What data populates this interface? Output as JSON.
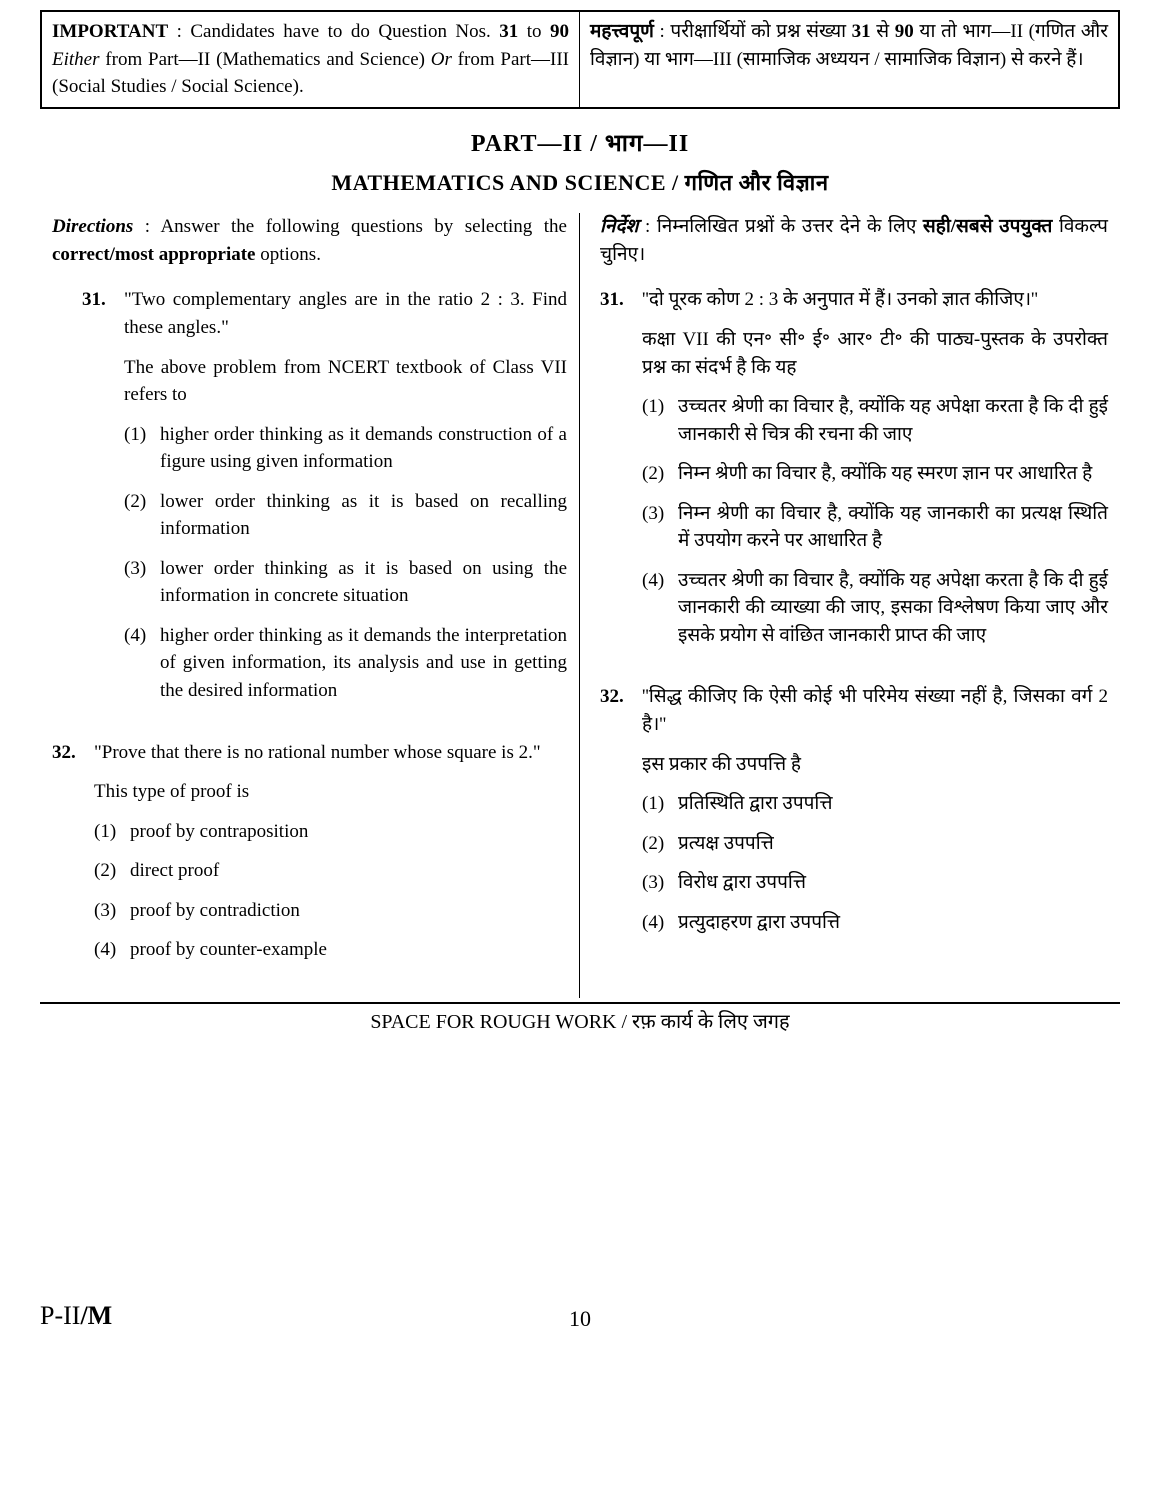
{
  "important": {
    "en_label": "IMPORTANT",
    "en_text": " : Candidates have to do Question Nos. ",
    "en_range": "31",
    "en_to": " to ",
    "en_range2": "90",
    "en_either": " Either",
    "en_partA": " from Part—II (Mathematics and Science) ",
    "en_or": "Or",
    "en_partB": " from Part—III (Social Studies / Social Science).",
    "hi_label": "महत्त्वपूर्ण",
    "hi_text": " : परीक्षार्थियों को प्रश्न संख्या ",
    "hi_r1": "31",
    "hi_mid": " से ",
    "hi_r2": "90",
    "hi_rest": " या तो भाग—II (गणित और विज्ञान) या भाग—III (सामाजिक अध्ययन / सामाजिक विज्ञान) से करने हैं।"
  },
  "part_title": "PART—II / भाग—II",
  "subject_title": "MATHEMATICS AND SCIENCE / गणित और विज्ञान",
  "directions": {
    "en_label": "Directions",
    "en_text1": " : Answer the following questions by selecting the ",
    "en_bold": "correct/most appropriate",
    "en_text2": " options.",
    "hi_label": "निर्देश",
    "hi_text1": " : निम्नलिखित प्रश्नों के उत्तर देने के लिए ",
    "hi_bold": "सही/सबसे उपयुक्त",
    "hi_text2": " विकल्प चुनिए।"
  },
  "q31": {
    "num": "31.",
    "en_stem1": "\"Two complementary angles are in the ratio 2 : 3. Find these angles.\"",
    "en_stem2": "The above problem from NCERT textbook of Class VII refers to",
    "en_opts": {
      "n1": "(1)",
      "t1": "higher order thinking as it demands construction of a figure using given information",
      "n2": "(2)",
      "t2": "lower order thinking as it is based on recalling information",
      "n3": "(3)",
      "t3": "lower order thinking as it is based on using the information in concrete situation",
      "n4": "(4)",
      "t4": "higher order thinking as it demands the interpretation of given information, its analysis and use in getting the desired information"
    },
    "hi_stem1": "''दो पूरक कोण 2 : 3 के अनुपात में हैं। उनको ज्ञात कीजिए।''",
    "hi_stem2": "कक्षा VII की एन॰ सी॰ ई॰ आर॰ टी॰ की पाठ्य-पुस्तक के उपरोक्त प्रश्न का संदर्भ है कि यह",
    "hi_opts": {
      "n1": "(1)",
      "t1": "उच्चतर श्रेणी का विचार है, क्योंकि यह अपेक्षा करता है कि दी हुई जानकारी से चित्र की रचना की जाए",
      "n2": "(2)",
      "t2": "निम्न श्रेणी का विचार है, क्योंकि यह स्मरण ज्ञान पर आधारित है",
      "n3": "(3)",
      "t3": "निम्न श्रेणी का विचार है, क्योंकि यह जानकारी का प्रत्यक्ष स्थिति में उपयोग करने पर आधारित है",
      "n4": "(4)",
      "t4": "उच्चतर श्रेणी का विचार है, क्योंकि यह अपेक्षा करता है कि दी हुई जानकारी की व्याख्या की जाए, इसका विश्लेषण किया जाए और इसके प्रयोग से वांछित जानकारी प्राप्त की जाए"
    }
  },
  "q32": {
    "num": "32.",
    "en_stem1": "\"Prove that there is no rational number whose square is 2.\"",
    "en_stem2": "This type of proof is",
    "en_opts": {
      "n1": "(1)",
      "t1": "proof by contraposition",
      "n2": "(2)",
      "t2": "direct proof",
      "n3": "(3)",
      "t3": "proof by contradiction",
      "n4": "(4)",
      "t4": "proof by counter-example"
    },
    "hi_stem1": "''सिद्ध कीजिए कि ऐसी कोई भी परिमेय संख्या नहीं है, जिसका वर्ग 2 है।''",
    "hi_stem2": "इस प्रकार की उपपत्ति है",
    "hi_opts": {
      "n1": "(1)",
      "t1": "प्रतिस्थिति द्वारा उपपत्ति",
      "n2": "(2)",
      "t2": "प्रत्यक्ष उपपत्ति",
      "n3": "(3)",
      "t3": "विरोध द्वारा उपपत्ति",
      "n4": "(4)",
      "t4": "प्रत्युदाहरण द्वारा उपपत्ति"
    }
  },
  "rough_work": "SPACE FOR ROUGH WORK / रफ़ कार्य के लिए जगह",
  "footer_left": "P-II/M",
  "footer_center": "10"
}
